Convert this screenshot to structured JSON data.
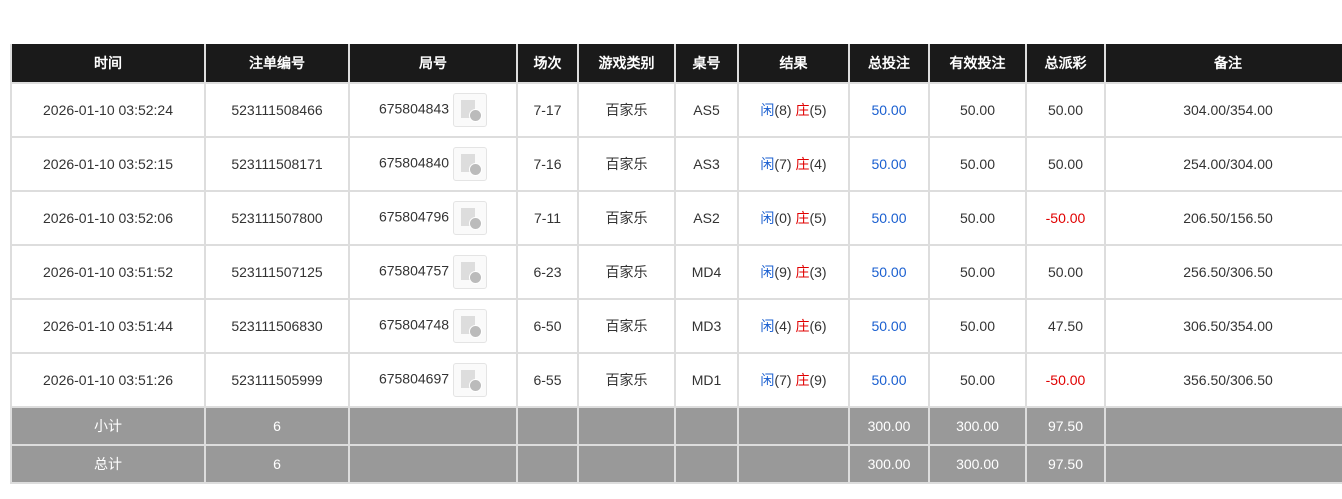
{
  "headers": [
    "时间",
    "注单编号",
    "局号",
    "场次",
    "游戏类别",
    "桌号",
    "结果",
    "总投注",
    "有效投注",
    "总派彩",
    "备注"
  ],
  "rows": [
    {
      "time": "2026-01-10 03:52:24",
      "bet_id": "523111508466",
      "round": "675804843",
      "shoe": "7-17",
      "game": "百家乐",
      "table": "AS5",
      "player_label": "闲",
      "player": "(8)",
      "banker_label": "庄",
      "banker": "(5)",
      "bet": "50.00",
      "valid": "50.00",
      "payout": "50.00",
      "payout_neg": false,
      "note": "304.00/354.00"
    },
    {
      "time": "2026-01-10 03:52:15",
      "bet_id": "523111508171",
      "round": "675804840",
      "shoe": "7-16",
      "game": "百家乐",
      "table": "AS3",
      "player_label": "闲",
      "player": "(7)",
      "banker_label": "庄",
      "banker": "(4)",
      "bet": "50.00",
      "valid": "50.00",
      "payout": "50.00",
      "payout_neg": false,
      "note": "254.00/304.00"
    },
    {
      "time": "2026-01-10 03:52:06",
      "bet_id": "523111507800",
      "round": "675804796",
      "shoe": "7-11",
      "game": "百家乐",
      "table": "AS2",
      "player_label": "闲",
      "player": "(0)",
      "banker_label": "庄",
      "banker": "(5)",
      "bet": "50.00",
      "valid": "50.00",
      "payout": "-50.00",
      "payout_neg": true,
      "note": "206.50/156.50"
    },
    {
      "time": "2026-01-10 03:51:52",
      "bet_id": "523111507125",
      "round": "675804757",
      "shoe": "6-23",
      "game": "百家乐",
      "table": "MD4",
      "player_label": "闲",
      "player": "(9)",
      "banker_label": "庄",
      "banker": "(3)",
      "bet": "50.00",
      "valid": "50.00",
      "payout": "50.00",
      "payout_neg": false,
      "note": "256.50/306.50"
    },
    {
      "time": "2026-01-10 03:51:44",
      "bet_id": "523111506830",
      "round": "675804748",
      "shoe": "6-50",
      "game": "百家乐",
      "table": "MD3",
      "player_label": "闲",
      "player": "(4)",
      "banker_label": "庄",
      "banker": "(6)",
      "bet": "50.00",
      "valid": "50.00",
      "payout": "47.50",
      "payout_neg": false,
      "note": "306.50/354.00"
    },
    {
      "time": "2026-01-10 03:51:26",
      "bet_id": "523111505999",
      "round": "675804697",
      "shoe": "6-55",
      "game": "百家乐",
      "table": "MD1",
      "player_label": "闲",
      "player": "(7)",
      "banker_label": "庄",
      "banker": "(9)",
      "bet": "50.00",
      "valid": "50.00",
      "payout": "-50.00",
      "payout_neg": true,
      "note": "356.50/306.50"
    }
  ],
  "summary": [
    {
      "label": "小计",
      "count": "6",
      "bet": "300.00",
      "valid": "300.00",
      "payout": "97.50"
    },
    {
      "label": "总计",
      "count": "6",
      "bet": "300.00",
      "valid": "300.00",
      "payout": "97.50"
    }
  ],
  "colors": {
    "blue": "#1a5fd0",
    "red": "#e00000",
    "header_bg": "#1a1a1a",
    "summary_bg": "#999999"
  }
}
